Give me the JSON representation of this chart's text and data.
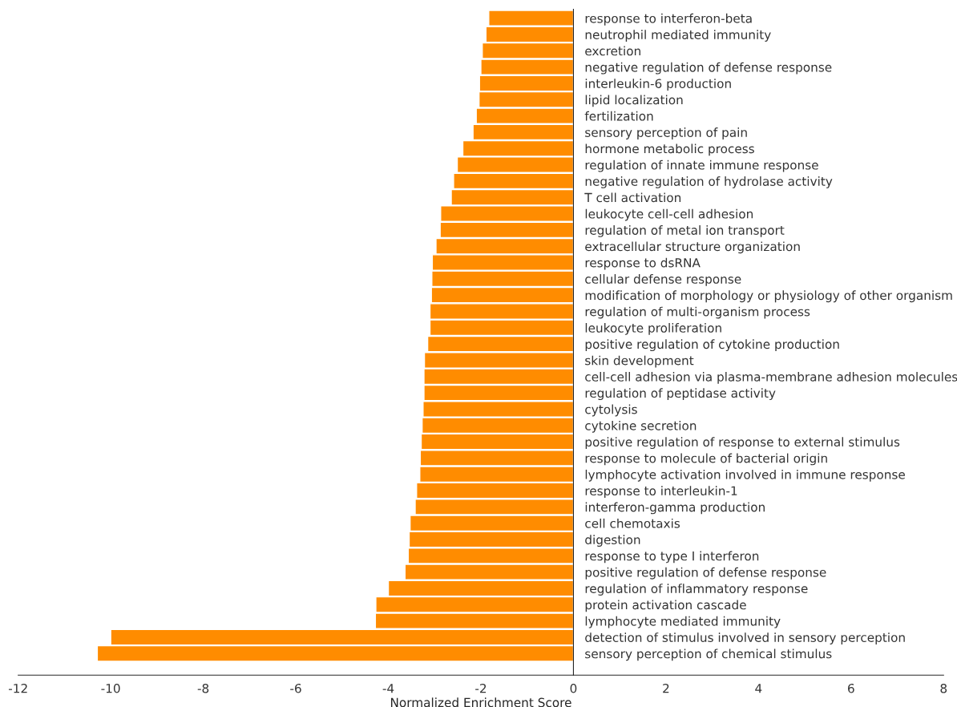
{
  "chart_data": {
    "type": "bar",
    "orientation": "horizontal",
    "xlabel": "Normalized Enrichment Score",
    "categories": [
      "response to interferon-beta",
      "neutrophil mediated immunity",
      "excretion",
      "negative regulation of defense response",
      "interleukin-6 production",
      "lipid localization",
      "fertilization",
      "sensory perception of pain",
      "hormone metabolic process",
      "regulation of innate immune response",
      "negative regulation of hydrolase activity",
      "T cell activation",
      "leukocyte cell-cell adhesion",
      "regulation of metal ion transport",
      "extracellular structure organization",
      "response to dsRNA",
      "cellular defense response",
      "modification of morphology or physiology of other organism",
      "regulation of multi-organism process",
      "leukocyte proliferation",
      "positive regulation of cytokine production",
      "skin development",
      "cell-cell adhesion via plasma-membrane adhesion molecules",
      "regulation of peptidase activity",
      "cytolysis",
      "cytokine secretion",
      "positive regulation of response to external stimulus",
      "response to molecule of bacterial origin",
      "lymphocyte activation involved in immune response",
      "response to interleukin-1",
      "interferon-gamma production",
      "cell chemotaxis",
      "digestion",
      "response to type I interferon",
      "positive regulation of defense response",
      "regulation of inflammatory response",
      "protein activation cascade",
      "lymphocyte mediated immunity",
      "detection of stimulus involved in sensory perception",
      "sensory perception of chemical stimulus"
    ],
    "values": [
      -1.83,
      -1.89,
      -1.97,
      -2.0,
      -2.03,
      -2.04,
      -2.1,
      -2.17,
      -2.39,
      -2.51,
      -2.59,
      -2.64,
      -2.87,
      -2.88,
      -2.97,
      -3.05,
      -3.06,
      -3.07,
      -3.1,
      -3.1,
      -3.15,
      -3.22,
      -3.23,
      -3.23,
      -3.25,
      -3.27,
      -3.29,
      -3.31,
      -3.32,
      -3.39,
      -3.42,
      -3.53,
      -3.55,
      -3.57,
      -3.64,
      -4.0,
      -4.27,
      -4.28,
      -10.0,
      -10.29
    ],
    "color": "#ff8c00",
    "xlim": [
      -12,
      8
    ],
    "xticks": [
      -12,
      -10,
      -8,
      -6,
      -4,
      -2,
      0,
      2,
      4,
      6,
      8
    ],
    "grid": false,
    "legend": false
  }
}
